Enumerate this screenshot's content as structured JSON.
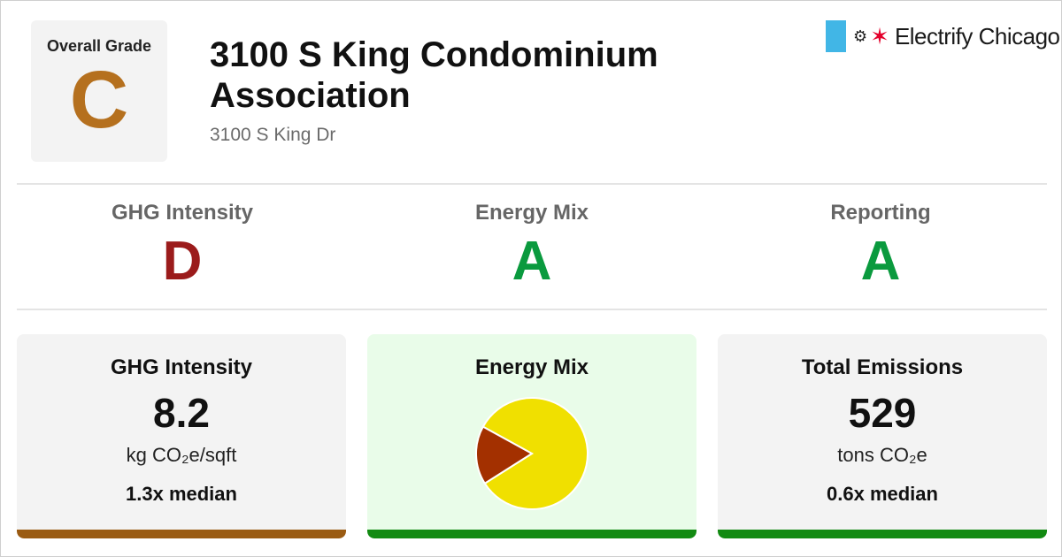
{
  "overall": {
    "label": "Overall Grade",
    "grade": "C",
    "color": "#b5701e"
  },
  "building": {
    "name": "3100 S King Condominium Association",
    "address": "3100 S King Dr"
  },
  "brand": {
    "plug_icon": "plug-icon",
    "star_icon": "red-star-icon",
    "name": "Electrify Chicago",
    "flag_color": "#41b6e6",
    "star_color": "#e4002b"
  },
  "subgrades": [
    {
      "label": "GHG Intensity",
      "grade": "D",
      "color": "#9b1b1b"
    },
    {
      "label": "Energy Mix",
      "grade": "A",
      "color": "#0a9a3e"
    },
    {
      "label": "Reporting",
      "grade": "A",
      "color": "#0a9a3e"
    }
  ],
  "cards": {
    "ghg": {
      "title": "GHG Intensity",
      "value": "8.2",
      "unit": "kg CO₂e/sqft",
      "median": "1.3x median",
      "bar_color": "#9a5b12",
      "bg": "#f3f3f3"
    },
    "mix": {
      "title": "Energy Mix",
      "bg": "#e9fce9",
      "bar_color": "#128a12"
    },
    "emissions": {
      "title": "Total Emissions",
      "value": "529",
      "unit": "tons CO₂e",
      "median": "0.6x median",
      "bar_color": "#128a12",
      "bg": "#f3f3f3"
    }
  },
  "chart_data": {
    "type": "pie",
    "slices": [
      {
        "value": 83,
        "color": "#f0e000"
      },
      {
        "value": 17,
        "color": "#a33000"
      }
    ]
  }
}
